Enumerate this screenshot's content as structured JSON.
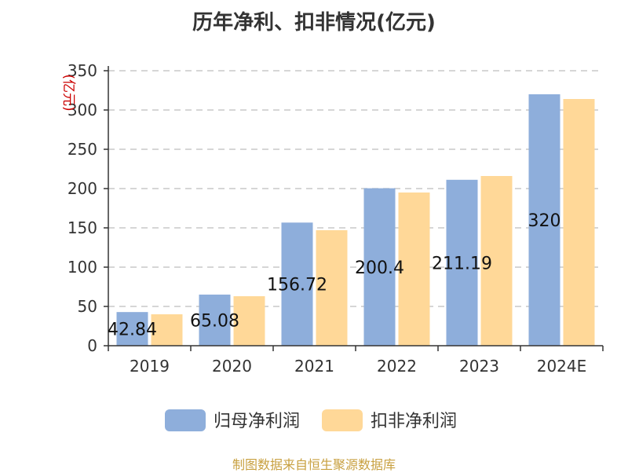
{
  "chart_data": {
    "type": "bar",
    "title": "历年净利、扣非情况(亿元)",
    "ylabel": "(亿元)",
    "xlabel": "",
    "categories": [
      "2019",
      "2020",
      "2021",
      "2022",
      "2023",
      "2024E"
    ],
    "yticks": [
      "0",
      "50",
      "100",
      "150",
      "200",
      "250",
      "300",
      "350"
    ],
    "ylim": [
      0,
      350
    ],
    "grid": true,
    "legend_position": "bottom",
    "series": [
      {
        "name": "归母净利润",
        "color": "#8eaedb",
        "values": [
          42.84,
          65.08,
          156.72,
          200.4,
          211.19,
          320
        ],
        "labels": [
          "42.84",
          "65.08",
          "156.72",
          "200.4",
          "211.19",
          "320"
        ]
      },
      {
        "name": "扣非净利润",
        "color": "#ffd898",
        "values": [
          40,
          63,
          147,
          195,
          216,
          314
        ]
      }
    ]
  },
  "source_note": "制图数据来自恒生聚源数据库"
}
